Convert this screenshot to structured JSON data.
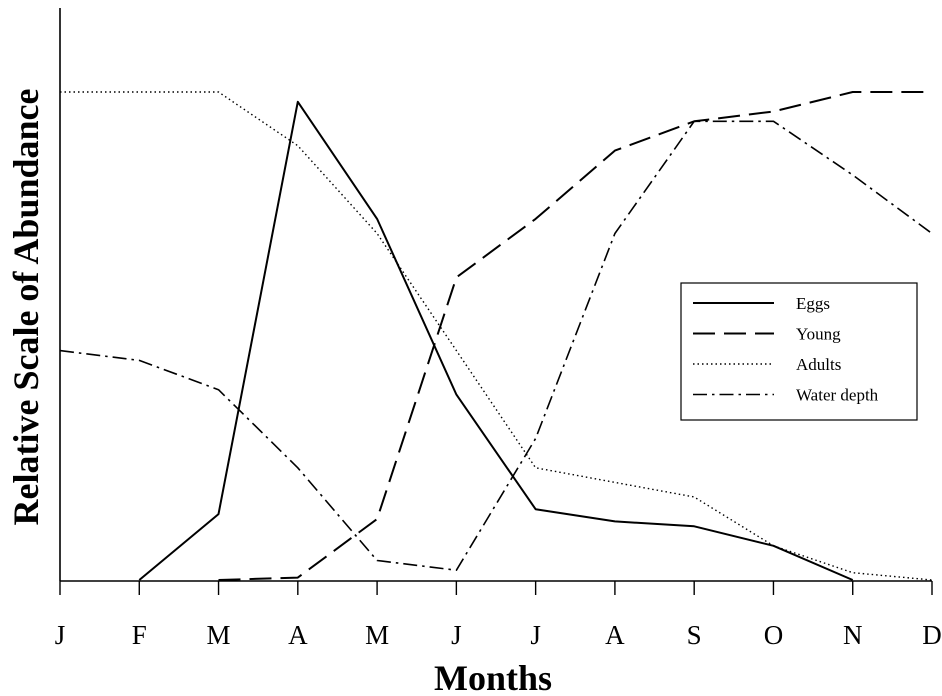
{
  "chart_data": {
    "type": "line",
    "title": "",
    "xlabel": "Months",
    "ylabel": "Relative Scale of Abundance",
    "categories": [
      "J",
      "F",
      "M",
      "A",
      "M",
      "J",
      "J",
      "A",
      "S",
      "O",
      "N",
      "D"
    ],
    "ylim": [
      0,
      100
    ],
    "grid": false,
    "legend_position": "center-right",
    "series": [
      {
        "name": "Eggs",
        "style": "solid",
        "color": "#000000",
        "values": [
          null,
          0,
          13.5,
          98,
          74,
          38,
          14.5,
          12,
          11,
          7,
          0,
          null
        ]
      },
      {
        "name": "Young",
        "style": "dashed",
        "color": "#000000",
        "values": [
          null,
          null,
          0,
          0.5,
          12.5,
          62,
          74,
          88,
          94,
          96,
          100,
          100
        ]
      },
      {
        "name": "Adults",
        "style": "dotted",
        "color": "#000000",
        "values": [
          100,
          100,
          100,
          89,
          71,
          47,
          23,
          20,
          17,
          7,
          1.5,
          0
        ]
      },
      {
        "name": "Water depth",
        "style": "dashdot",
        "color": "#000000",
        "values": [
          47,
          45,
          39,
          23,
          4,
          2,
          29,
          71,
          94,
          94,
          83,
          71
        ]
      }
    ]
  }
}
